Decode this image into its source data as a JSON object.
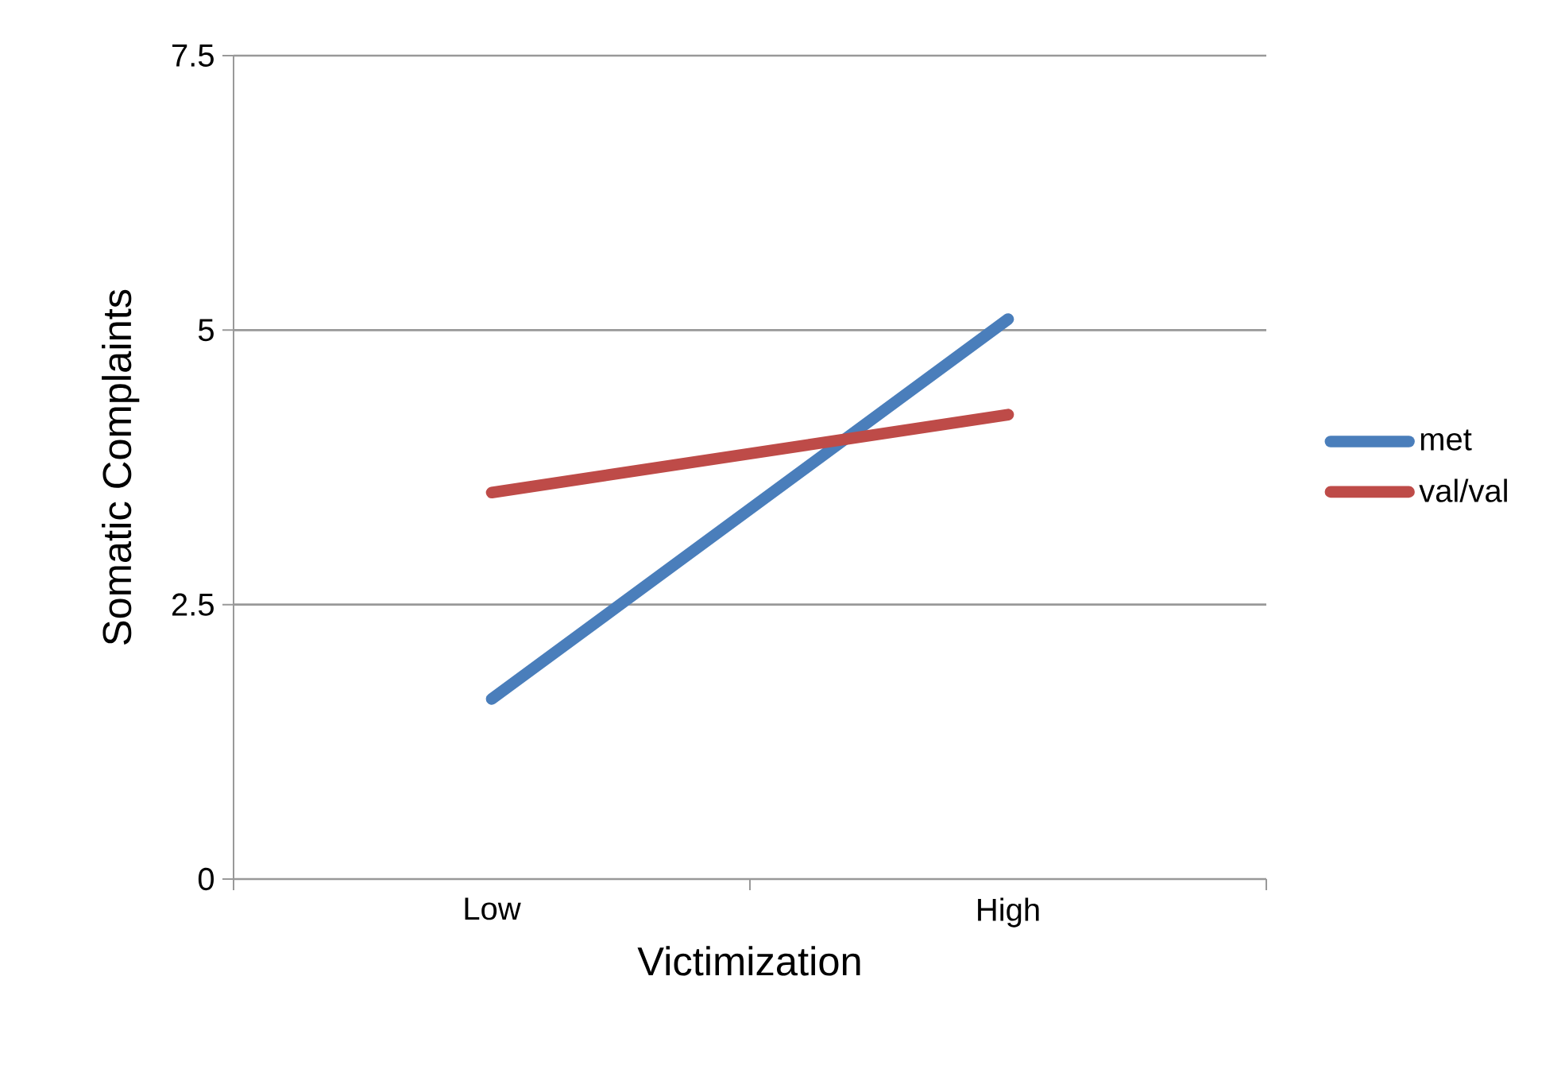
{
  "chart_data": {
    "type": "line",
    "xlabel": "Victimization",
    "ylabel": "Somatic Complaints",
    "categories": [
      "Low",
      "High"
    ],
    "series": [
      {
        "name": "met",
        "color": "#4a7ebb",
        "values": [
          1.64,
          5.1
        ]
      },
      {
        "name": "val/val",
        "color": "#be4b48",
        "values": [
          3.52,
          4.23
        ]
      }
    ],
    "ylim": [
      0,
      7.5
    ],
    "yticks": [
      0,
      2.5,
      5,
      7.5
    ],
    "grid": "y",
    "legend": "right",
    "marker": "none",
    "line_style": "solid"
  }
}
